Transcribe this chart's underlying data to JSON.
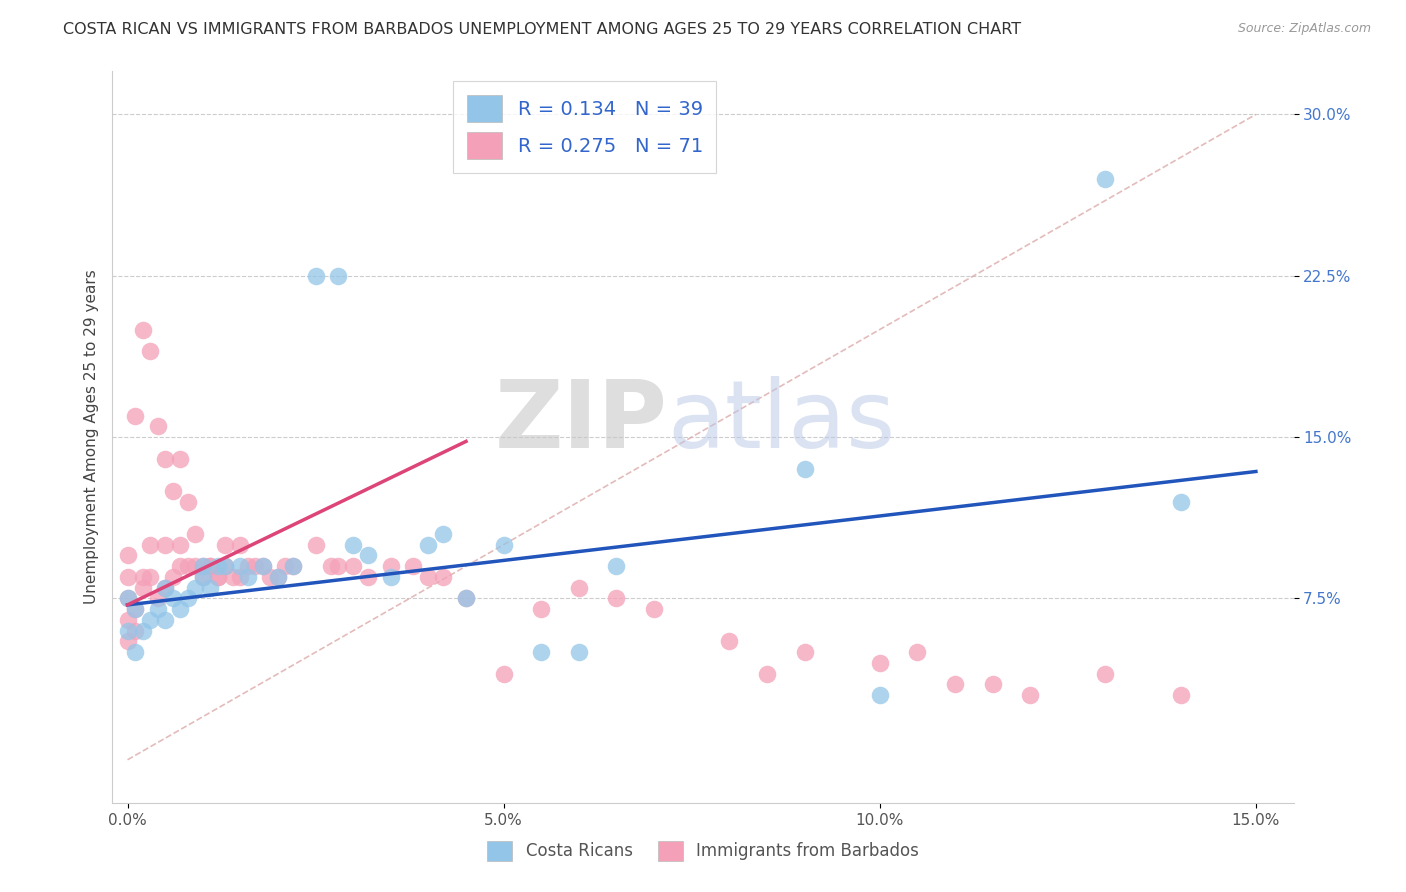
{
  "title": "COSTA RICAN VS IMMIGRANTS FROM BARBADOS UNEMPLOYMENT AMONG AGES 25 TO 29 YEARS CORRELATION CHART",
  "source": "Source: ZipAtlas.com",
  "ylabel": "Unemployment Among Ages 25 to 29 years",
  "xlim": [
    -0.002,
    0.155
  ],
  "ylim": [
    -0.02,
    0.32
  ],
  "xticks": [
    0.0,
    0.05,
    0.1,
    0.15
  ],
  "xtick_labels": [
    "0.0%",
    "5.0%",
    "10.0%",
    "15.0%"
  ],
  "yticks": [
    0.075,
    0.15,
    0.225,
    0.3
  ],
  "ytick_labels": [
    "7.5%",
    "15.0%",
    "22.5%",
    "30.0%"
  ],
  "R_blue": 0.134,
  "N_blue": 39,
  "R_pink": 0.275,
  "N_pink": 71,
  "blue_color": "#92C5E8",
  "pink_color": "#F4A0B8",
  "blue_line_color": "#2255BB",
  "pink_line_color": "#DD4477",
  "ref_line_color": "#DDAAAA",
  "watermark_zip": "ZIP",
  "watermark_atlas": "atlas",
  "title_fontsize": 11.5,
  "axis_fontsize": 11,
  "tick_fontsize": 11,
  "blue_scatter_x": [
    0.0,
    0.0,
    0.001,
    0.001,
    0.002,
    0.003,
    0.004,
    0.005,
    0.005,
    0.006,
    0.007,
    0.008,
    0.009,
    0.01,
    0.01,
    0.011,
    0.012,
    0.013,
    0.015,
    0.016,
    0.018,
    0.02,
    0.022,
    0.025,
    0.028,
    0.03,
    0.032,
    0.035,
    0.04,
    0.042,
    0.045,
    0.05,
    0.055,
    0.06,
    0.065,
    0.09,
    0.1,
    0.13,
    0.14
  ],
  "blue_scatter_y": [
    0.06,
    0.075,
    0.05,
    0.07,
    0.06,
    0.065,
    0.07,
    0.065,
    0.08,
    0.075,
    0.07,
    0.075,
    0.08,
    0.085,
    0.09,
    0.08,
    0.09,
    0.09,
    0.09,
    0.085,
    0.09,
    0.085,
    0.09,
    0.225,
    0.225,
    0.1,
    0.095,
    0.085,
    0.1,
    0.105,
    0.075,
    0.1,
    0.05,
    0.05,
    0.09,
    0.135,
    0.03,
    0.27,
    0.12
  ],
  "pink_scatter_x": [
    0.0,
    0.0,
    0.0,
    0.0,
    0.0,
    0.001,
    0.001,
    0.001,
    0.002,
    0.002,
    0.002,
    0.003,
    0.003,
    0.003,
    0.004,
    0.004,
    0.005,
    0.005,
    0.005,
    0.006,
    0.006,
    0.007,
    0.007,
    0.007,
    0.008,
    0.008,
    0.009,
    0.009,
    0.01,
    0.01,
    0.011,
    0.011,
    0.012,
    0.012,
    0.013,
    0.013,
    0.014,
    0.015,
    0.015,
    0.016,
    0.017,
    0.018,
    0.019,
    0.02,
    0.021,
    0.022,
    0.025,
    0.027,
    0.028,
    0.03,
    0.032,
    0.035,
    0.038,
    0.04,
    0.042,
    0.045,
    0.05,
    0.055,
    0.06,
    0.065,
    0.07,
    0.08,
    0.085,
    0.09,
    0.1,
    0.105,
    0.11,
    0.115,
    0.12,
    0.13,
    0.14
  ],
  "pink_scatter_y": [
    0.055,
    0.065,
    0.075,
    0.085,
    0.095,
    0.06,
    0.07,
    0.16,
    0.08,
    0.085,
    0.2,
    0.085,
    0.1,
    0.19,
    0.075,
    0.155,
    0.08,
    0.1,
    0.14,
    0.085,
    0.125,
    0.09,
    0.1,
    0.14,
    0.09,
    0.12,
    0.09,
    0.105,
    0.085,
    0.09,
    0.09,
    0.09,
    0.085,
    0.085,
    0.09,
    0.1,
    0.085,
    0.085,
    0.1,
    0.09,
    0.09,
    0.09,
    0.085,
    0.085,
    0.09,
    0.09,
    0.1,
    0.09,
    0.09,
    0.09,
    0.085,
    0.09,
    0.09,
    0.085,
    0.085,
    0.075,
    0.04,
    0.07,
    0.08,
    0.075,
    0.07,
    0.055,
    0.04,
    0.05,
    0.045,
    0.05,
    0.035,
    0.035,
    0.03,
    0.04,
    0.03
  ],
  "blue_line_x": [
    0.0,
    0.15
  ],
  "blue_line_y": [
    0.072,
    0.134
  ],
  "pink_line_x": [
    0.0,
    0.045
  ],
  "pink_line_y": [
    0.072,
    0.148
  ],
  "ref_line_x": [
    0.0,
    0.15
  ],
  "ref_line_y": [
    0.0,
    0.3
  ]
}
